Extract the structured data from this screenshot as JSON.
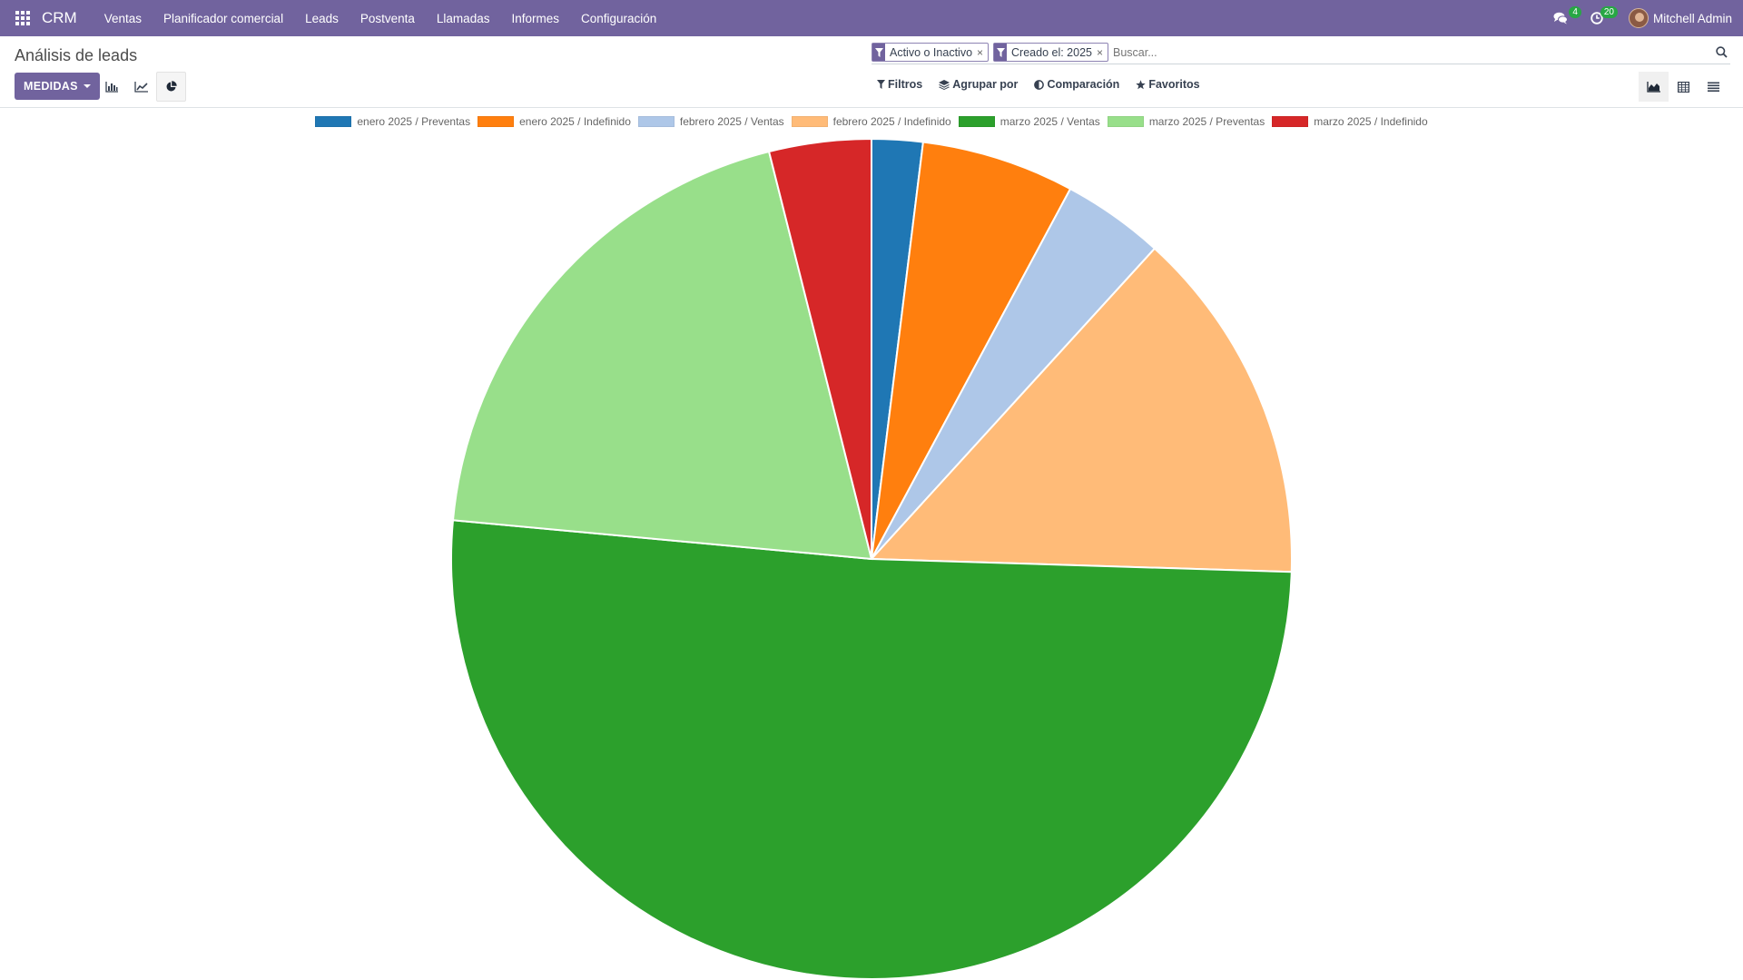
{
  "navbar": {
    "brand": "CRM",
    "menu": [
      "Ventas",
      "Planificador comercial",
      "Leads",
      "Postventa",
      "Llamadas",
      "Informes",
      "Configuración"
    ],
    "messages_count": "4",
    "activities_count": "20",
    "user_name": "Mitchell Admin"
  },
  "control": {
    "page_title": "Análisis de leads",
    "measures_label": "MEDIDAS",
    "facets": [
      "Activo o Inactivo",
      "Creado el: 2025"
    ],
    "search_placeholder": "Buscar...",
    "filters_label": "Filtros",
    "group_by_label": "Agrupar por",
    "comparison_label": "Comparación",
    "favorites_label": "Favoritos"
  },
  "icons": {
    "apps": "apps-grid-icon",
    "messages": "comments-icon",
    "activities": "clock-icon",
    "bar_chart": "bar-chart-icon",
    "line_chart": "line-chart-icon",
    "pie_chart": "pie-chart-icon",
    "graph_view": "area-chart-icon",
    "pivot_view": "table-icon",
    "list_view": "list-icon"
  },
  "chart_data": {
    "type": "pie",
    "title": "",
    "series": [
      {
        "name": "enero 2025 / Preventas",
        "value": 1,
        "color": "#1f77b4"
      },
      {
        "name": "enero 2025 / Indefinido",
        "value": 3,
        "color": "#ff7f0e"
      },
      {
        "name": "febrero 2025 / Ventas",
        "value": 2,
        "color": "#aec7e8"
      },
      {
        "name": "febrero 2025 / Indefinido",
        "value": 7,
        "color": "#ffbb78"
      },
      {
        "name": "marzo 2025 / Ventas",
        "value": 26,
        "color": "#2ca02c"
      },
      {
        "name": "marzo 2025 / Preventas",
        "value": 10,
        "color": "#98df8a"
      },
      {
        "name": "marzo 2025 / Indefinido",
        "value": 2,
        "color": "#d62728"
      }
    ],
    "legend_position": "top"
  }
}
